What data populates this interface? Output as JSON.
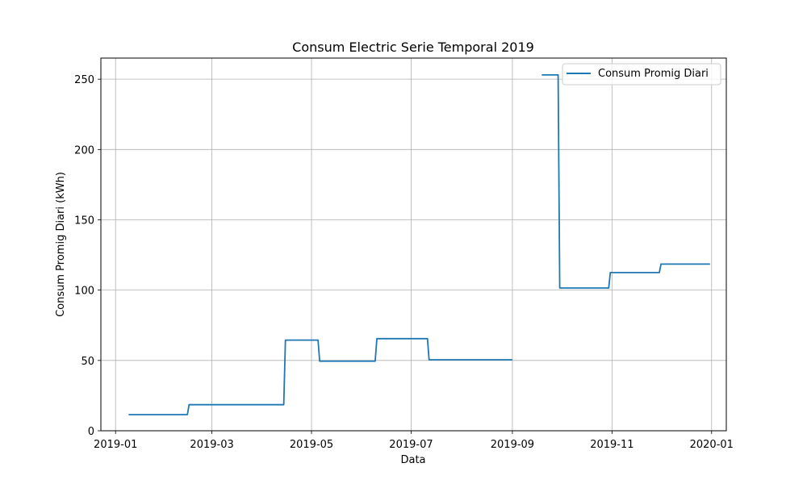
{
  "chart_data": {
    "type": "line",
    "title": "Consum Electric Serie Temporal 2019",
    "xlabel": "Data",
    "ylabel": "Consum Promig Diari (kWh)",
    "xlim": [
      "2018-12-23",
      "2020-01-10"
    ],
    "ylim": [
      0,
      265
    ],
    "grid": true,
    "legend_position": "top-right",
    "x_ticks": [
      "2019-01-01",
      "2019-03-01",
      "2019-05-01",
      "2019-07-01",
      "2019-09-01",
      "2019-11-01",
      "2020-01-01"
    ],
    "x_tick_labels": [
      "2019-01",
      "2019-03",
      "2019-05",
      "2019-07",
      "2019-09",
      "2019-11",
      "2020-01"
    ],
    "y_ticks": [
      0,
      50,
      100,
      150,
      200,
      250
    ],
    "y_tick_labels": [
      "0",
      "50",
      "100",
      "150",
      "200",
      "250"
    ],
    "series": [
      {
        "name": "Consum Promig Diari",
        "color": "#1f77b4",
        "points": [
          [
            "2019-01-09",
            11.5
          ],
          [
            "2019-02-14",
            11.5
          ],
          [
            "2019-02-15",
            18.5
          ],
          [
            "2019-04-14",
            18.5
          ],
          [
            "2019-04-15",
            64.5
          ],
          [
            "2019-05-05",
            64.5
          ],
          [
            "2019-05-06",
            49.5
          ],
          [
            "2019-06-09",
            49.5
          ],
          [
            "2019-06-10",
            65.5
          ],
          [
            "2019-07-11",
            65.5
          ],
          [
            "2019-07-12",
            50.5
          ],
          [
            "2019-09-01",
            50.5
          ],
          null,
          [
            "2019-09-19",
            253
          ],
          [
            "2019-09-29",
            253
          ],
          [
            "2019-09-30",
            101.5
          ],
          [
            "2019-10-30",
            101.5
          ],
          [
            "2019-10-31",
            112.5
          ],
          [
            "2019-11-30",
            112.5
          ],
          [
            "2019-12-01",
            118.5
          ],
          [
            "2019-12-31",
            118.5
          ]
        ]
      }
    ]
  }
}
